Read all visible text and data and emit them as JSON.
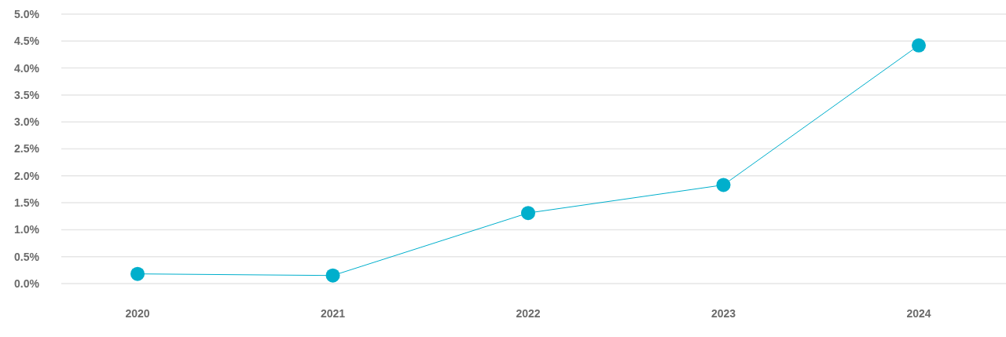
{
  "chart_data": {
    "type": "line",
    "categories": [
      "2020",
      "2021",
      "2022",
      "2023",
      "2024"
    ],
    "values": [
      0.18,
      0.15,
      1.31,
      1.83,
      4.42
    ],
    "color": "#00afcc",
    "ylim": [
      0,
      5
    ],
    "yticks": [
      {
        "value": 0,
        "label": "0.0%"
      },
      {
        "value": 0.5,
        "label": "0.5%"
      },
      {
        "value": 1,
        "label": "1.0%"
      },
      {
        "value": 1.5,
        "label": "1.5%"
      },
      {
        "value": 2,
        "label": "2.0%"
      },
      {
        "value": 2.5,
        "label": "2.5%"
      },
      {
        "value": 3,
        "label": "3.0%"
      },
      {
        "value": 3.5,
        "label": "3.5%"
      },
      {
        "value": 4,
        "label": "4.0%"
      },
      {
        "value": 4.5,
        "label": "4.5%"
      },
      {
        "value": 5,
        "label": "5.0%"
      }
    ],
    "grid": "y",
    "marker": "circle",
    "line_style": "solid"
  }
}
